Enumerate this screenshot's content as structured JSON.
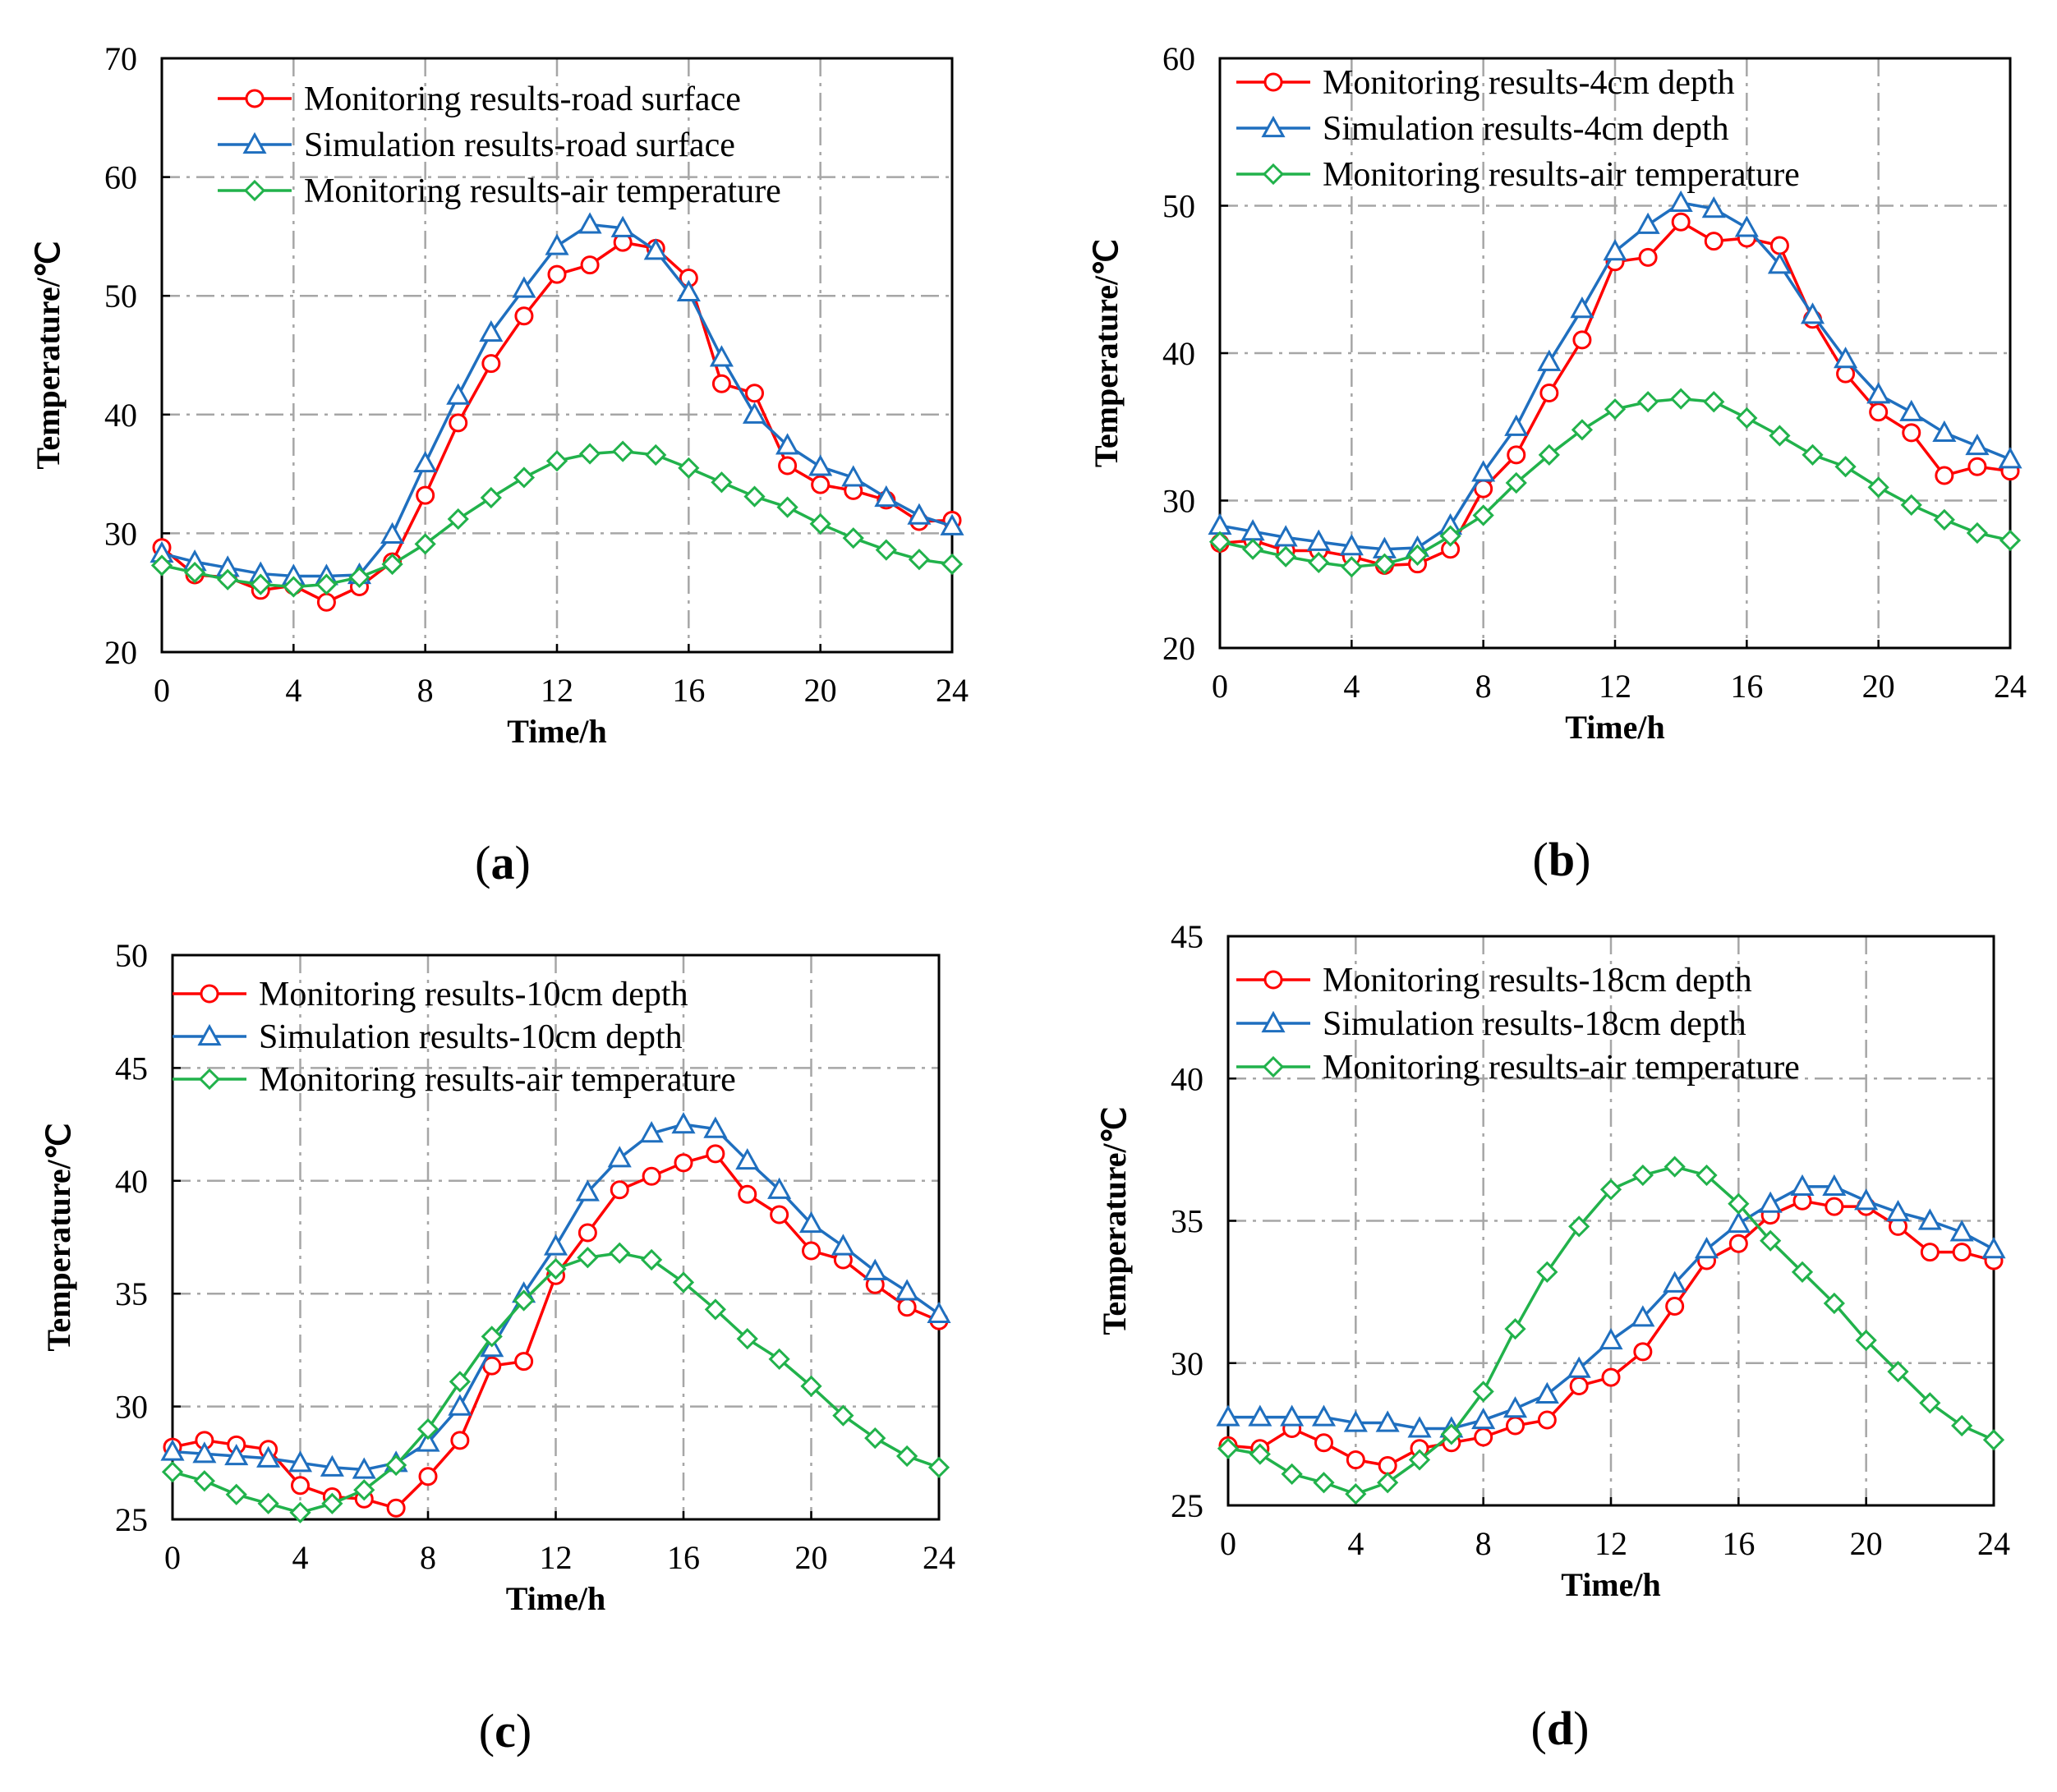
{
  "colors": {
    "monitoring": "#ff0000",
    "simulation": "#1f6fbf",
    "air": "#21b24b",
    "grid": "#a6a6a6"
  },
  "chart_data": [
    {
      "panel": "(a)",
      "panel_letter": "a",
      "type": "line",
      "xlabel": "Time/h",
      "ylabel": "Temperature/℃",
      "xlim": [
        0,
        24
      ],
      "ylim": [
        20,
        70
      ],
      "xticks": [
        "0",
        "4",
        "8",
        "12",
        "16",
        "20",
        "24"
      ],
      "yticks": [
        "20",
        "30",
        "40",
        "50",
        "60",
        "70"
      ],
      "grid": true,
      "legend": "top-left",
      "x": [
        0,
        1,
        2,
        3,
        4,
        5,
        6,
        7,
        8,
        9,
        10,
        11,
        12,
        13,
        14,
        15,
        16,
        17,
        18,
        19,
        20,
        21,
        22,
        23,
        24
      ],
      "series": [
        {
          "name": "Monitoring results-road surface",
          "color_key": "monitoring",
          "marker": "circle",
          "values": [
            28.8,
            26.5,
            26.3,
            25.2,
            25.6,
            24.2,
            25.5,
            27.6,
            33.2,
            39.3,
            44.3,
            48.3,
            51.8,
            52.6,
            54.5,
            54.0,
            51.5,
            42.6,
            41.8,
            35.7,
            34.1,
            33.6,
            32.8,
            31.0,
            31.1
          ]
        },
        {
          "name": "Simulation results-road surface",
          "color_key": "simulation",
          "marker": "triangle",
          "values": [
            28.3,
            27.6,
            27.1,
            26.6,
            26.4,
            26.4,
            26.5,
            29.9,
            35.9,
            41.6,
            46.9,
            50.6,
            54.2,
            56.0,
            55.7,
            53.8,
            50.3,
            44.8,
            40.0,
            37.4,
            35.6,
            34.7,
            33.0,
            31.5,
            30.6
          ]
        },
        {
          "name": "Monitoring results-air temperature",
          "color_key": "air",
          "marker": "diamond",
          "values": [
            27.3,
            26.7,
            26.1,
            25.7,
            25.5,
            25.7,
            26.3,
            27.4,
            29.1,
            31.2,
            33.0,
            34.7,
            36.1,
            36.7,
            36.9,
            36.6,
            35.5,
            34.3,
            33.1,
            32.2,
            30.8,
            29.6,
            28.6,
            27.8,
            27.4
          ]
        }
      ]
    },
    {
      "panel": "(b)",
      "panel_letter": "b",
      "type": "line",
      "xlabel": "Time/h",
      "ylabel": "Temperature/℃",
      "xlim": [
        0,
        24
      ],
      "ylim": [
        20,
        60
      ],
      "xticks": [
        "0",
        "4",
        "8",
        "12",
        "16",
        "20",
        "24"
      ],
      "yticks": [
        "20",
        "30",
        "40",
        "50",
        "60"
      ],
      "grid": true,
      "legend": "top-left",
      "x": [
        0,
        1,
        2,
        3,
        4,
        5,
        6,
        7,
        8,
        9,
        10,
        11,
        12,
        13,
        14,
        15,
        16,
        17,
        18,
        19,
        20,
        21,
        22,
        23,
        24
      ],
      "series": [
        {
          "name": "Monitoring results-4cm depth",
          "color_key": "monitoring",
          "marker": "circle",
          "values": [
            27.1,
            27.3,
            26.6,
            26.6,
            26.2,
            25.6,
            25.7,
            26.7,
            30.8,
            33.1,
            37.3,
            40.9,
            46.2,
            46.5,
            48.9,
            47.6,
            47.8,
            47.3,
            42.3,
            38.6,
            36.0,
            34.6,
            31.7,
            32.3,
            32.0
          ]
        },
        {
          "name": "Simulation results-4cm depth",
          "color_key": "simulation",
          "marker": "triangle",
          "values": [
            28.3,
            27.9,
            27.5,
            27.2,
            26.9,
            26.7,
            26.8,
            28.3,
            31.9,
            35.0,
            39.4,
            43.0,
            46.9,
            48.7,
            50.2,
            49.8,
            48.5,
            46.0,
            42.6,
            39.6,
            37.2,
            36.0,
            34.6,
            33.7,
            32.8
          ]
        },
        {
          "name": "Monitoring results-air temperature",
          "color_key": "air",
          "marker": "diamond",
          "values": [
            27.2,
            26.7,
            26.2,
            25.8,
            25.5,
            25.7,
            26.3,
            27.6,
            29.0,
            31.2,
            33.1,
            34.8,
            36.2,
            36.7,
            36.9,
            36.7,
            35.6,
            34.4,
            33.1,
            32.3,
            30.9,
            29.7,
            28.7,
            27.8,
            27.3
          ]
        }
      ]
    },
    {
      "panel": "(c)",
      "panel_letter": "c",
      "type": "line",
      "xlabel": "Time/h",
      "ylabel": "Temperature/℃",
      "xlim": [
        0,
        24
      ],
      "ylim": [
        25,
        50
      ],
      "xticks": [
        "0",
        "4",
        "8",
        "12",
        "16",
        "20",
        "24"
      ],
      "yticks": [
        "25",
        "30",
        "35",
        "40",
        "45",
        "50"
      ],
      "grid": true,
      "legend": "top-left",
      "x": [
        0,
        1,
        2,
        3,
        4,
        5,
        6,
        7,
        8,
        9,
        10,
        11,
        12,
        13,
        14,
        15,
        16,
        17,
        18,
        19,
        20,
        21,
        22,
        23,
        24
      ],
      "series": [
        {
          "name": "Monitoring results-10cm depth",
          "color_key": "monitoring",
          "marker": "circle",
          "values": [
            28.2,
            28.5,
            28.3,
            28.1,
            26.5,
            26.0,
            25.9,
            25.5,
            26.9,
            28.5,
            31.8,
            32.0,
            35.8,
            37.7,
            39.6,
            40.2,
            40.8,
            41.2,
            39.4,
            38.5,
            36.9,
            36.5,
            35.4,
            34.4,
            33.8
          ]
        },
        {
          "name": "Simulation results-10cm depth",
          "color_key": "simulation",
          "marker": "triangle",
          "values": [
            28.0,
            27.9,
            27.8,
            27.7,
            27.5,
            27.3,
            27.2,
            27.5,
            28.4,
            30.0,
            32.6,
            35.0,
            37.1,
            39.5,
            41.0,
            42.1,
            42.5,
            42.3,
            40.9,
            39.6,
            38.1,
            37.1,
            36.0,
            35.1,
            34.1
          ]
        },
        {
          "name": "Monitoring results-air temperature",
          "color_key": "air",
          "marker": "diamond",
          "values": [
            27.1,
            26.7,
            26.1,
            25.7,
            25.3,
            25.7,
            26.3,
            27.4,
            29.0,
            31.1,
            33.1,
            34.7,
            36.1,
            36.6,
            36.8,
            36.5,
            35.5,
            34.3,
            33.0,
            32.1,
            30.9,
            29.6,
            28.6,
            27.8,
            27.3
          ]
        }
      ]
    },
    {
      "panel": "(d)",
      "panel_letter": "d",
      "type": "line",
      "xlabel": "Time/h",
      "ylabel": "Temperature/℃",
      "xlim": [
        0,
        24
      ],
      "ylim": [
        25,
        45
      ],
      "xticks": [
        "0",
        "4",
        "8",
        "12",
        "16",
        "20",
        "24"
      ],
      "yticks": [
        "25",
        "30",
        "35",
        "40",
        "45"
      ],
      "grid": true,
      "legend": "top-left",
      "x": [
        0,
        1,
        2,
        3,
        4,
        5,
        6,
        7,
        8,
        9,
        10,
        11,
        12,
        13,
        14,
        15,
        16,
        17,
        18,
        19,
        20,
        21,
        22,
        23,
        24
      ],
      "series": [
        {
          "name": "Monitoring results-18cm depth",
          "color_key": "monitoring",
          "marker": "circle",
          "values": [
            27.1,
            27.0,
            27.7,
            27.2,
            26.6,
            26.4,
            27.0,
            27.2,
            27.4,
            27.8,
            28.0,
            29.2,
            29.5,
            30.4,
            32.0,
            33.6,
            34.2,
            35.2,
            35.7,
            35.5,
            35.5,
            34.8,
            33.9,
            33.9,
            33.6
          ]
        },
        {
          "name": "Simulation results-18cm depth",
          "color_key": "simulation",
          "marker": "triangle",
          "values": [
            28.1,
            28.1,
            28.1,
            28.1,
            27.9,
            27.9,
            27.7,
            27.7,
            28.0,
            28.4,
            28.9,
            29.8,
            30.8,
            31.6,
            32.8,
            34.0,
            34.9,
            35.6,
            36.2,
            36.2,
            35.7,
            35.3,
            35.0,
            34.6,
            34.0
          ]
        },
        {
          "name": "Monitoring results-air temperature",
          "color_key": "air",
          "marker": "diamond",
          "values": [
            27.0,
            26.8,
            26.1,
            25.8,
            25.4,
            25.8,
            26.6,
            27.5,
            29.0,
            31.2,
            33.2,
            34.8,
            36.1,
            36.6,
            36.9,
            36.6,
            35.6,
            34.3,
            33.2,
            32.1,
            30.8,
            29.7,
            28.6,
            27.8,
            27.3
          ]
        }
      ]
    }
  ]
}
